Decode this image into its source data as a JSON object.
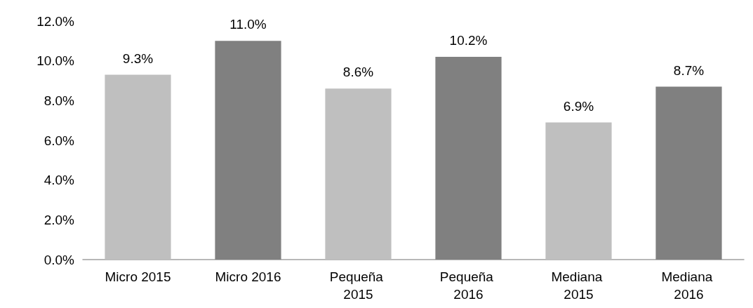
{
  "chart_data": {
    "type": "bar",
    "categories": [
      "Micro 2015",
      "Micro 2016",
      "Pequeña 2015",
      "Pequeña 2016",
      "Mediana 2015",
      "Mediana 2016"
    ],
    "values": [
      9.3,
      11.0,
      8.6,
      10.2,
      6.9,
      8.7
    ],
    "colors": [
      "#bfbfbf",
      "#808080",
      "#bfbfbf",
      "#808080",
      "#bfbfbf",
      "#808080"
    ],
    "value_labels": [
      "9.3%",
      "11.0%",
      "8.6%",
      "10.2%",
      "6.9%",
      "8.7%"
    ],
    "ylim": [
      0,
      12
    ],
    "yticks": [
      {
        "value": 0,
        "label": "0.0%"
      },
      {
        "value": 2,
        "label": "2.0%"
      },
      {
        "value": 4,
        "label": "4.0%"
      },
      {
        "value": 6,
        "label": "6.0%"
      },
      {
        "value": 8,
        "label": "8.0%"
      },
      {
        "value": 10,
        "label": "10.0%"
      },
      {
        "value": 12,
        "label": "12.0%"
      }
    ],
    "grid": false
  }
}
